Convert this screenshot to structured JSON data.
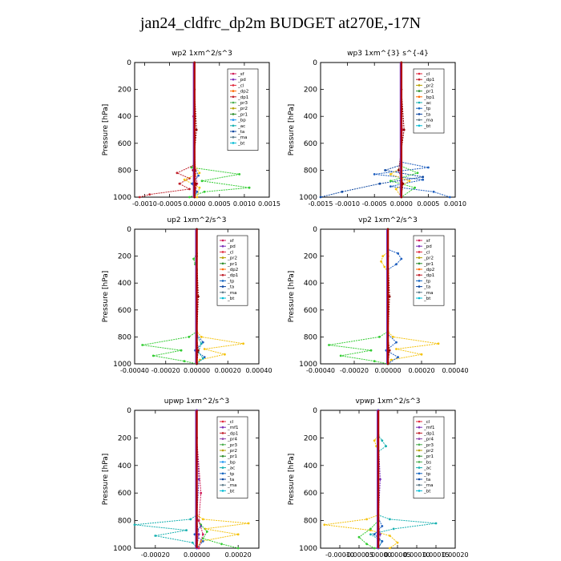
{
  "page_title": "jan24_cldfrc_dp2m  BUDGET at270E,-17N",
  "colors": {
    "sf": "#d01c5a",
    "pd": "#7b2fb8",
    "cl": "#e0283c",
    "dp1": "#c0202a",
    "dp2": "#ff6a00",
    "pr1": "#2f8f2f",
    "pr2": "#b5a000",
    "pr3": "#4caf50",
    "pr4": "#8e44ad",
    "mf": "#6a1b9a",
    "bp": "#2196f3",
    "ac": "#16b0b0",
    "tp": "#1565c0",
    "ta": "#0d47a1",
    "ma": "#607d8b",
    "bt": "#00bcd4",
    "gold": "#f4c20d",
    "green": "#33cc33",
    "blue": "#1f5fbf",
    "darkred": "#8b0000"
  },
  "chart_data": [
    {
      "type": "line",
      "title": "wp2   1xm^2/s^3",
      "ylabel": "Pressure [hPa]",
      "ylim": [
        0,
        1000
      ],
      "xlim": [
        -0.0012,
        0.0015
      ],
      "xticks": [
        -0.001,
        -0.0005,
        0.0,
        0.0005,
        0.001,
        0.0015
      ],
      "xtick_labels": [
        "-0.0010",
        "-0.0005",
        "0.0000",
        "0.0005",
        "0.0010",
        "0.0015"
      ],
      "yticks": [
        0,
        200,
        400,
        600,
        800,
        1000
      ],
      "legend": [
        "_sf",
        "_pd",
        "_cl",
        "_dp2",
        "_dp1",
        "_pr3",
        "_pr2",
        "_pr1",
        "_bp",
        "_ac",
        "_ta",
        "_ma",
        "_bt"
      ],
      "series": [
        {
          "key": "sf",
          "x": [
            0,
            0,
            -2e-05,
            0,
            2e-05,
            5e-05,
            0
          ],
          "y": [
            0,
            200,
            400,
            600,
            800,
            900,
            1000
          ]
        },
        {
          "key": "green",
          "x": [
            0,
            0,
            -6e-05,
            0.0009,
            0.00015,
            0.0011,
            0.0002,
            -0.0001
          ],
          "y": [
            0,
            740,
            780,
            830,
            880,
            930,
            960,
            1000
          ]
        },
        {
          "key": "dp1",
          "x": [
            0,
            0,
            -0.00035,
            -0.0001,
            -0.0003,
            -0.0001,
            -0.0009,
            -0.0011
          ],
          "y": [
            0,
            760,
            820,
            860,
            900,
            940,
            980,
            1000
          ]
        },
        {
          "key": "gold",
          "x": [
            0,
            0,
            0.0001,
            -0.0002,
            0.0001,
            5e-05
          ],
          "y": [
            0,
            760,
            820,
            870,
            930,
            1000
          ]
        },
        {
          "key": "blue",
          "x": [
            0,
            0,
            8e-05,
            -5e-05,
            5e-05,
            0
          ],
          "y": [
            0,
            780,
            840,
            900,
            960,
            1000
          ]
        },
        {
          "key": "darkred",
          "x": [
            0,
            0,
            4e-05,
            -3e-05,
            3e-05,
            0
          ],
          "y": [
            0,
            200,
            500,
            800,
            900,
            1000
          ]
        }
      ]
    },
    {
      "type": "line",
      "title": "wp3   1xm^{3} s^{-4}",
      "ylabel": "Pressure [hPa]",
      "ylim": [
        0,
        1000
      ],
      "xlim": [
        -0.0015,
        0.001
      ],
      "xticks": [
        -0.0015,
        -0.001,
        -0.0005,
        0.0,
        0.0005,
        0.001
      ],
      "xtick_labels": [
        "-0.0015",
        "-0.0010",
        "-0.0005",
        "0.0000",
        "0.0005",
        "0.0010"
      ],
      "yticks": [
        0,
        200,
        400,
        600,
        800,
        1000
      ],
      "legend": [
        "_cl",
        "_dp1",
        "_pr2",
        "_pr1",
        "_bp1",
        "_ac",
        "_tp",
        "_ta",
        "_ma",
        "_bt"
      ],
      "series": [
        {
          "key": "sf",
          "x": [
            0,
            0,
            2e-05,
            0,
            2e-05,
            0
          ],
          "y": [
            0,
            200,
            500,
            750,
            900,
            1000
          ]
        },
        {
          "key": "blue",
          "x": [
            0,
            0,
            0.0005,
            -0.0005,
            0.0004,
            -0.0002,
            0.0006,
            0.0009
          ],
          "y": [
            0,
            740,
            780,
            830,
            870,
            920,
            960,
            1000
          ]
        },
        {
          "key": "ta",
          "x": [
            0,
            0,
            -0.0003,
            0.0004,
            -0.0004,
            -0.0011,
            -0.0015
          ],
          "y": [
            0,
            760,
            800,
            850,
            900,
            960,
            1000
          ]
        },
        {
          "key": "green",
          "x": [
            0,
            0,
            0.0003,
            -0.0002,
            0.00025,
            0
          ],
          "y": [
            0,
            770,
            820,
            880,
            930,
            1000
          ]
        },
        {
          "key": "gold",
          "x": [
            0,
            0,
            -0.0002,
            0.00015,
            -0.0001,
            0
          ],
          "y": [
            0,
            780,
            830,
            880,
            940,
            1000
          ]
        },
        {
          "key": "darkred",
          "x": [
            0,
            0,
            5e-05,
            -5e-05,
            3e-05,
            0
          ],
          "y": [
            0,
            200,
            500,
            800,
            900,
            1000
          ]
        }
      ]
    },
    {
      "type": "line",
      "title": "up2   1xm^2/s^3",
      "ylabel": "Pressure [hPa]",
      "ylim": [
        0,
        1000
      ],
      "xlim": [
        -0.0004,
        0.0004
      ],
      "xticks": [
        -0.0004,
        -0.0002,
        0.0,
        0.0002,
        0.0004
      ],
      "xtick_labels": [
        "-0.00040",
        "-0.00020",
        "0.00000",
        "0.00020",
        "0.00040"
      ],
      "yticks": [
        0,
        200,
        400,
        600,
        800,
        1000
      ],
      "legend": [
        "_sf",
        "_pd",
        "_cl",
        "_pr2",
        "_pr1",
        "_dp2",
        "_dp1",
        "_tp",
        "_ta",
        "_ma",
        "_bt"
      ],
      "series": [
        {
          "key": "green",
          "x": [
            0,
            0,
            -2e-05,
            -1e-05,
            0,
            0,
            -5e-05,
            -0.00035,
            -0.0001,
            -0.00028,
            -8e-05,
            0
          ],
          "y": [
            0,
            180,
            220,
            260,
            300,
            760,
            800,
            860,
            900,
            940,
            980,
            1000
          ]
        },
        {
          "key": "gold",
          "x": [
            0,
            0,
            3e-05,
            0.0003,
            5e-05,
            0.00018,
            2e-05,
            0
          ],
          "y": [
            0,
            760,
            800,
            850,
            890,
            930,
            970,
            1000
          ]
        },
        {
          "key": "blue",
          "x": [
            0,
            0,
            4e-05,
            -1e-05,
            5e-05,
            0
          ],
          "y": [
            0,
            780,
            840,
            900,
            950,
            1000
          ]
        },
        {
          "key": "ac",
          "x": [
            0,
            0,
            3e-05,
            1e-05,
            4e-05,
            0
          ],
          "y": [
            0,
            790,
            850,
            910,
            960,
            1000
          ]
        },
        {
          "key": "darkred",
          "x": [
            0,
            0,
            1e-05,
            0,
            1e-05,
            0
          ],
          "y": [
            0,
            200,
            500,
            800,
            900,
            1000
          ]
        }
      ]
    },
    {
      "type": "line",
      "title": "vp2   1xm^2/s^3",
      "ylabel": "Pressure [hPa]",
      "ylim": [
        0,
        1000
      ],
      "xlim": [
        -0.0004,
        0.0004
      ],
      "xticks": [
        -0.0004,
        -0.0002,
        0.0,
        0.0002,
        0.0004
      ],
      "xtick_labels": [
        "-0.00040",
        "-0.00020",
        "0.00000",
        "0.00020",
        "0.00040"
      ],
      "yticks": [
        0,
        200,
        400,
        600,
        800,
        1000
      ],
      "legend": [
        "_sf",
        "_pd",
        "_cl",
        "_pr2",
        "_pr1",
        "_dp2",
        "_dp1",
        "_tp",
        "_ta",
        "_ma",
        "_bt"
      ],
      "series": [
        {
          "key": "gold",
          "x": [
            0,
            0,
            -3e-05,
            -4e-05,
            -2e-05,
            0,
            0,
            3e-05,
            0.0003,
            5e-05,
            0.0002,
            2e-05,
            0
          ],
          "y": [
            0,
            170,
            200,
            240,
            280,
            320,
            760,
            800,
            850,
            890,
            930,
            970,
            1000
          ]
        },
        {
          "key": "blue",
          "x": [
            0,
            0,
            6e-05,
            8e-05,
            5e-05,
            0,
            0,
            5e-05,
            -1e-05,
            6e-05,
            0
          ],
          "y": [
            0,
            150,
            180,
            220,
            260,
            300,
            780,
            840,
            900,
            950,
            1000
          ]
        },
        {
          "key": "green",
          "x": [
            0,
            0,
            -5e-05,
            -0.00035,
            -0.0001,
            -0.00028,
            -8e-05,
            0
          ],
          "y": [
            0,
            760,
            800,
            860,
            900,
            940,
            980,
            1000
          ]
        },
        {
          "key": "darkred",
          "x": [
            0,
            0,
            1e-05,
            0,
            1e-05,
            0
          ],
          "y": [
            0,
            200,
            500,
            800,
            900,
            1000
          ]
        }
      ]
    },
    {
      "type": "line",
      "title": "upwp   1xm^2/s^3",
      "ylabel": "Pressure [hPa]",
      "ylim": [
        0,
        1000
      ],
      "xlim": [
        -0.0003,
        0.0003
      ],
      "xticks": [
        -0.0002,
        0.0,
        0.0002
      ],
      "xtick_labels": [
        "-0.00020",
        "0.00000",
        "0.00020"
      ],
      "yticks": [
        0,
        200,
        400,
        600,
        800,
        1000
      ],
      "legend": [
        "_cl",
        "_mf1",
        "_dp1",
        "_pr4",
        "_pr3",
        "_pr2",
        "_pr1",
        "_bp",
        "_ac",
        "_tp",
        "_ta",
        "_ma",
        "_bt"
      ],
      "series": [
        {
          "key": "gold",
          "x": [
            0,
            0,
            3e-05,
            0.00025,
            4e-05,
            0.0002,
            2e-05,
            0
          ],
          "y": [
            0,
            760,
            790,
            820,
            860,
            900,
            950,
            1000
          ]
        },
        {
          "key": "ac",
          "x": [
            0,
            0,
            -3e-05,
            -0.0003,
            -5e-05,
            -0.0002,
            -2e-05,
            0
          ],
          "y": [
            0,
            760,
            790,
            830,
            870,
            910,
            960,
            1000
          ]
        },
        {
          "key": "green",
          "x": [
            0,
            0,
            2e-05,
            5e-05,
            3e-05,
            0.00012,
            0.0002
          ],
          "y": [
            0,
            780,
            830,
            880,
            930,
            970,
            1000
          ]
        },
        {
          "key": "blue",
          "x": [
            0,
            0,
            2e-05,
            -1e-05,
            3e-05,
            0
          ],
          "y": [
            0,
            780,
            840,
            900,
            950,
            1000
          ]
        },
        {
          "key": "sf",
          "x": [
            0,
            0,
            2e-05,
            1e-05,
            3e-05,
            1e-05
          ],
          "y": [
            0,
            200,
            600,
            800,
            900,
            1000
          ]
        },
        {
          "key": "pd",
          "x": [
            0,
            0,
            1e-05,
            0,
            1e-05,
            0
          ],
          "y": [
            0,
            200,
            500,
            800,
            900,
            1000
          ]
        }
      ]
    },
    {
      "type": "line",
      "title": "vpwp   1xm^2/s^3",
      "ylabel": "Pressure [hPa]",
      "ylim": [
        0,
        1000
      ],
      "xlim": [
        -0.00015,
        0.0002
      ],
      "xticks": [
        -0.0001,
        -5e-05,
        0.0,
        5e-05,
        0.0001,
        0.00015,
        0.0002
      ],
      "xtick_labels": [
        "-0.00010",
        "-0.00005",
        "0.00000",
        "0.00005",
        "0.00010",
        "0.00015",
        "0.00020"
      ],
      "yticks": [
        0,
        200,
        400,
        600,
        800,
        1000
      ],
      "legend": [
        "_cl",
        "_mf1",
        "_dp1",
        "_pr4",
        "_pr3",
        "_pr2",
        "_pr1",
        "_bs",
        "_ac",
        "_tp",
        "_ta",
        "_ma",
        "_bt"
      ],
      "series": [
        {
          "key": "gold",
          "x": [
            0,
            0,
            -1e-05,
            -5e-06,
            0,
            0,
            -3e-05,
            -0.00014,
            -2e-05,
            3e-05,
            5e-05,
            3e-05
          ],
          "y": [
            0,
            180,
            220,
            260,
            300,
            760,
            790,
            830,
            870,
            910,
            960,
            1000
          ]
        },
        {
          "key": "ac",
          "x": [
            0,
            0,
            1e-05,
            2e-05,
            0,
            0,
            3e-05,
            0.00015,
            4e-05,
            -2e-05,
            1e-05,
            0
          ],
          "y": [
            0,
            180,
            220,
            260,
            300,
            760,
            790,
            820,
            860,
            900,
            950,
            1000
          ]
        },
        {
          "key": "green",
          "x": [
            0,
            0,
            -2e-05,
            -5e-05,
            -3e-05,
            -1e-05
          ],
          "y": [
            0,
            800,
            860,
            920,
            970,
            1000
          ]
        },
        {
          "key": "blue",
          "x": [
            0,
            0,
            1e-05,
            -1e-05,
            1e-05,
            0
          ],
          "y": [
            0,
            780,
            840,
            900,
            950,
            1000
          ]
        },
        {
          "key": "pd",
          "x": [
            0,
            0,
            5e-06,
            0,
            5e-06,
            0
          ],
          "y": [
            0,
            200,
            500,
            800,
            900,
            1000
          ]
        }
      ]
    }
  ]
}
